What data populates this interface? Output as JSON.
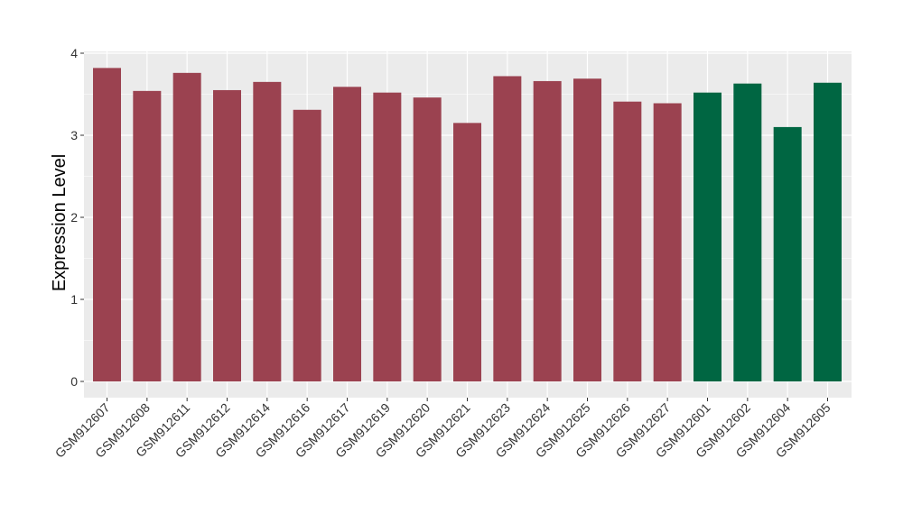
{
  "chart_data": {
    "type": "bar",
    "title": "",
    "xlabel": "",
    "ylabel": "Expression Level",
    "ylim": [
      0,
      4
    ],
    "yticks": [
      0,
      1,
      2,
      3,
      4
    ],
    "grid": true,
    "legend": "none",
    "categories": [
      "GSM912607",
      "GSM912608",
      "GSM912611",
      "GSM912612",
      "GSM912614",
      "GSM912616",
      "GSM912617",
      "GSM912619",
      "GSM912620",
      "GSM912621",
      "GSM912623",
      "GSM912624",
      "GSM912625",
      "GSM912626",
      "GSM912627",
      "GSM912601",
      "GSM912602",
      "GSM912604",
      "GSM912605"
    ],
    "values": [
      3.82,
      3.54,
      3.76,
      3.55,
      3.65,
      3.31,
      3.59,
      3.52,
      3.46,
      3.15,
      3.72,
      3.66,
      3.69,
      3.41,
      3.39,
      3.52,
      3.63,
      3.1,
      3.64
    ],
    "group": [
      0,
      0,
      0,
      0,
      0,
      0,
      0,
      0,
      0,
      0,
      0,
      0,
      0,
      0,
      0,
      1,
      1,
      1,
      1
    ],
    "colors": [
      "#9b4250",
      "#006642"
    ],
    "panel_background": "#ebebeb",
    "grid_color": "#ffffff"
  }
}
